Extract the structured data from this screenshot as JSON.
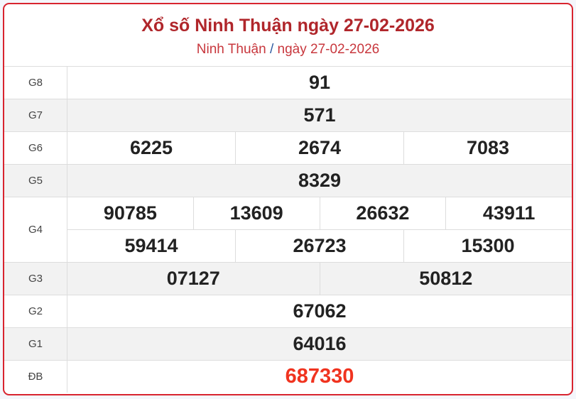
{
  "header": {
    "title": "Xổ số Ninh Thuận ngày 27-02-2026",
    "breadcrumb_province": "Ninh Thuận",
    "breadcrumb_separator": "/",
    "breadcrumb_date": "ngày 27-02-2026"
  },
  "colors": {
    "border": "#d8242f",
    "title": "#b0262b",
    "special_prize": "#f0331f"
  },
  "prizes": [
    {
      "label": "G8",
      "lines": [
        [
          "91"
        ]
      ]
    },
    {
      "label": "G7",
      "lines": [
        [
          "571"
        ]
      ]
    },
    {
      "label": "G6",
      "lines": [
        [
          "6225",
          "2674",
          "7083"
        ]
      ]
    },
    {
      "label": "G5",
      "lines": [
        [
          "8329"
        ]
      ]
    },
    {
      "label": "G4",
      "lines": [
        [
          "90785",
          "13609",
          "26632",
          "43911"
        ],
        [
          "59414",
          "26723",
          "15300"
        ]
      ]
    },
    {
      "label": "G3",
      "lines": [
        [
          "07127",
          "50812"
        ]
      ]
    },
    {
      "label": "G2",
      "lines": [
        [
          "67062"
        ]
      ]
    },
    {
      "label": "G1",
      "lines": [
        [
          "64016"
        ]
      ]
    },
    {
      "label": "ĐB",
      "lines": [
        [
          "687330"
        ]
      ],
      "special": true
    }
  ]
}
